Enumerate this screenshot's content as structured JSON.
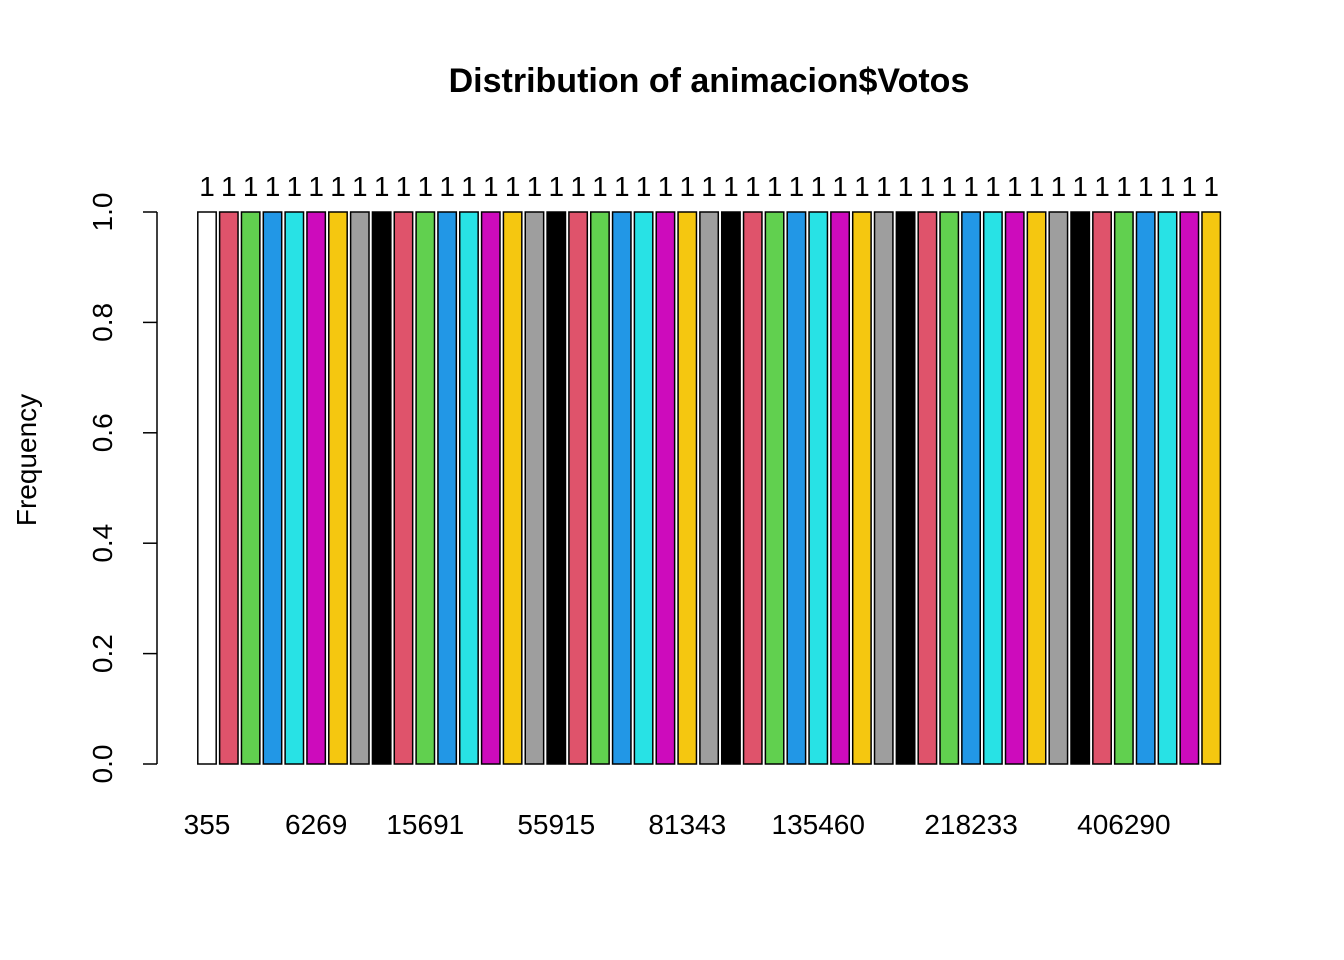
{
  "chart_data": {
    "type": "bar",
    "title": "Distribution of animacion$Votos",
    "xlabel": "",
    "ylabel": "Frequency",
    "ylim": [
      0,
      1
    ],
    "yticks": [
      "0.0",
      "0.2",
      "0.4",
      "0.6",
      "0.8",
      "1.0"
    ],
    "grid": false,
    "categories": [
      "355",
      "",
      "",
      "",
      "",
      "6269",
      "",
      "",
      "",
      "",
      "15691",
      "",
      "",
      "",
      "",
      "",
      "55915",
      "",
      "",
      "",
      "",
      "",
      "81343",
      "",
      "",
      "",
      "",
      "",
      "135460",
      "",
      "",
      "",
      "",
      "",
      "",
      "218233",
      "",
      "",
      "",
      "",
      "",
      "",
      "406290",
      "",
      "",
      "",
      ""
    ],
    "values": [
      1,
      1,
      1,
      1,
      1,
      1,
      1,
      1,
      1,
      1,
      1,
      1,
      1,
      1,
      1,
      1,
      1,
      1,
      1,
      1,
      1,
      1,
      1,
      1,
      1,
      1,
      1,
      1,
      1,
      1,
      1,
      1,
      1,
      1,
      1,
      1,
      1,
      1,
      1,
      1,
      1,
      1,
      1,
      1,
      1,
      1,
      1
    ],
    "data_labels": [
      "1",
      "1",
      "1",
      "1",
      "1",
      "1",
      "1",
      "1",
      "1",
      "1",
      "1",
      "1",
      "1",
      "1",
      "1",
      "1",
      "1",
      "1",
      "1",
      "1",
      "1",
      "1",
      "1",
      "1",
      "1",
      "1",
      "1",
      "1",
      "1",
      "1",
      "1",
      "1",
      "1",
      "1",
      "1",
      "1",
      "1",
      "1",
      "1",
      "1",
      "1",
      "1",
      "1",
      "1",
      "1",
      "1",
      "1"
    ],
    "first_color": "#FFFFFF",
    "color_cycle": [
      "#DF536B",
      "#61D04F",
      "#2297E6",
      "#28E2E5",
      "#CD0BBC",
      "#F5C710",
      "#9E9E9E",
      "#000000"
    ]
  }
}
